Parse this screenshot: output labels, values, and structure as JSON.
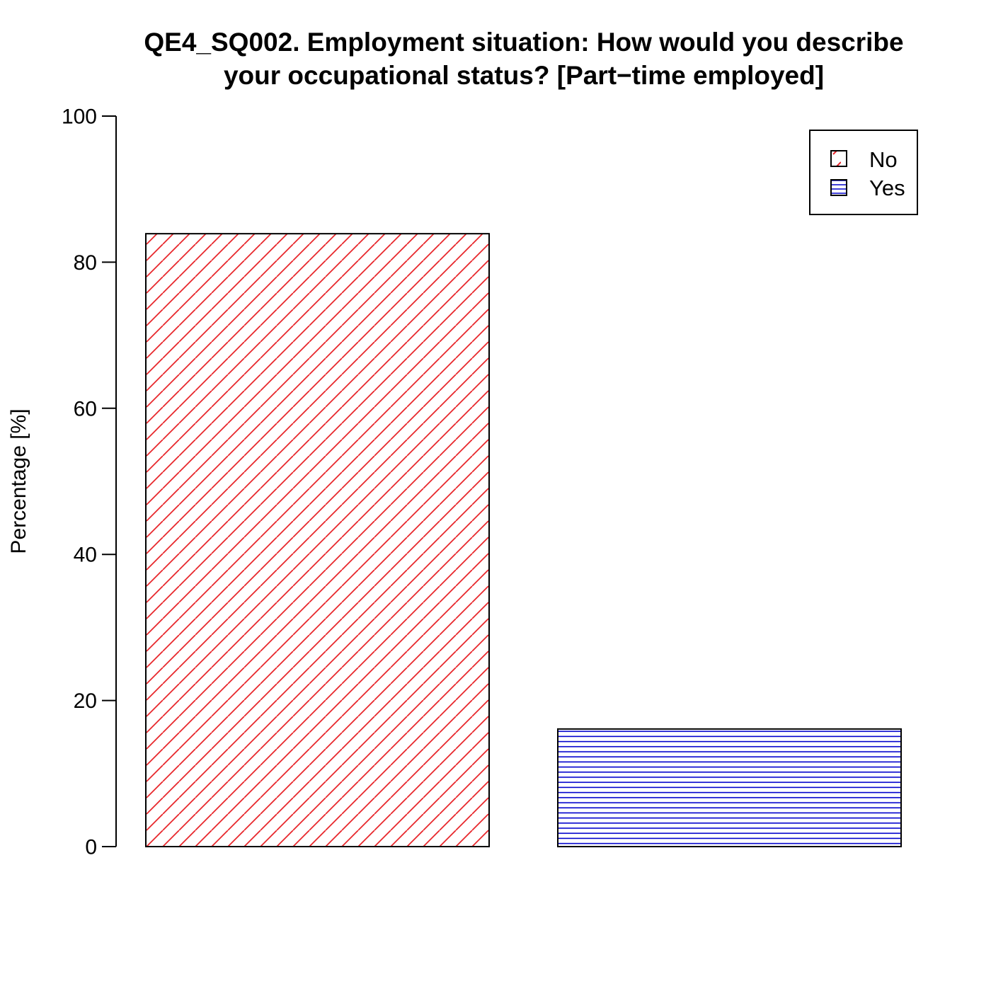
{
  "chart_data": {
    "type": "bar",
    "title_lines": [
      "QE4_SQ002. Employment situation: How would you describe",
      "your occupational status?  [Part−time employed]"
    ],
    "ylabel": "Percentage [%]",
    "xlabel": "",
    "ylim": [
      0,
      100
    ],
    "yticks": [
      0,
      20,
      40,
      60,
      80,
      100
    ],
    "grid": false,
    "legend_position": "top-right",
    "categories": [
      "No",
      "Yes"
    ],
    "values": [
      83.9,
      16.1
    ],
    "series": [
      {
        "name": "No",
        "value": 83.9,
        "color": "#e8262b",
        "hatch": "diagonal"
      },
      {
        "name": "Yes",
        "value": 16.1,
        "color": "#0000cc",
        "hatch": "horizontal"
      }
    ]
  }
}
